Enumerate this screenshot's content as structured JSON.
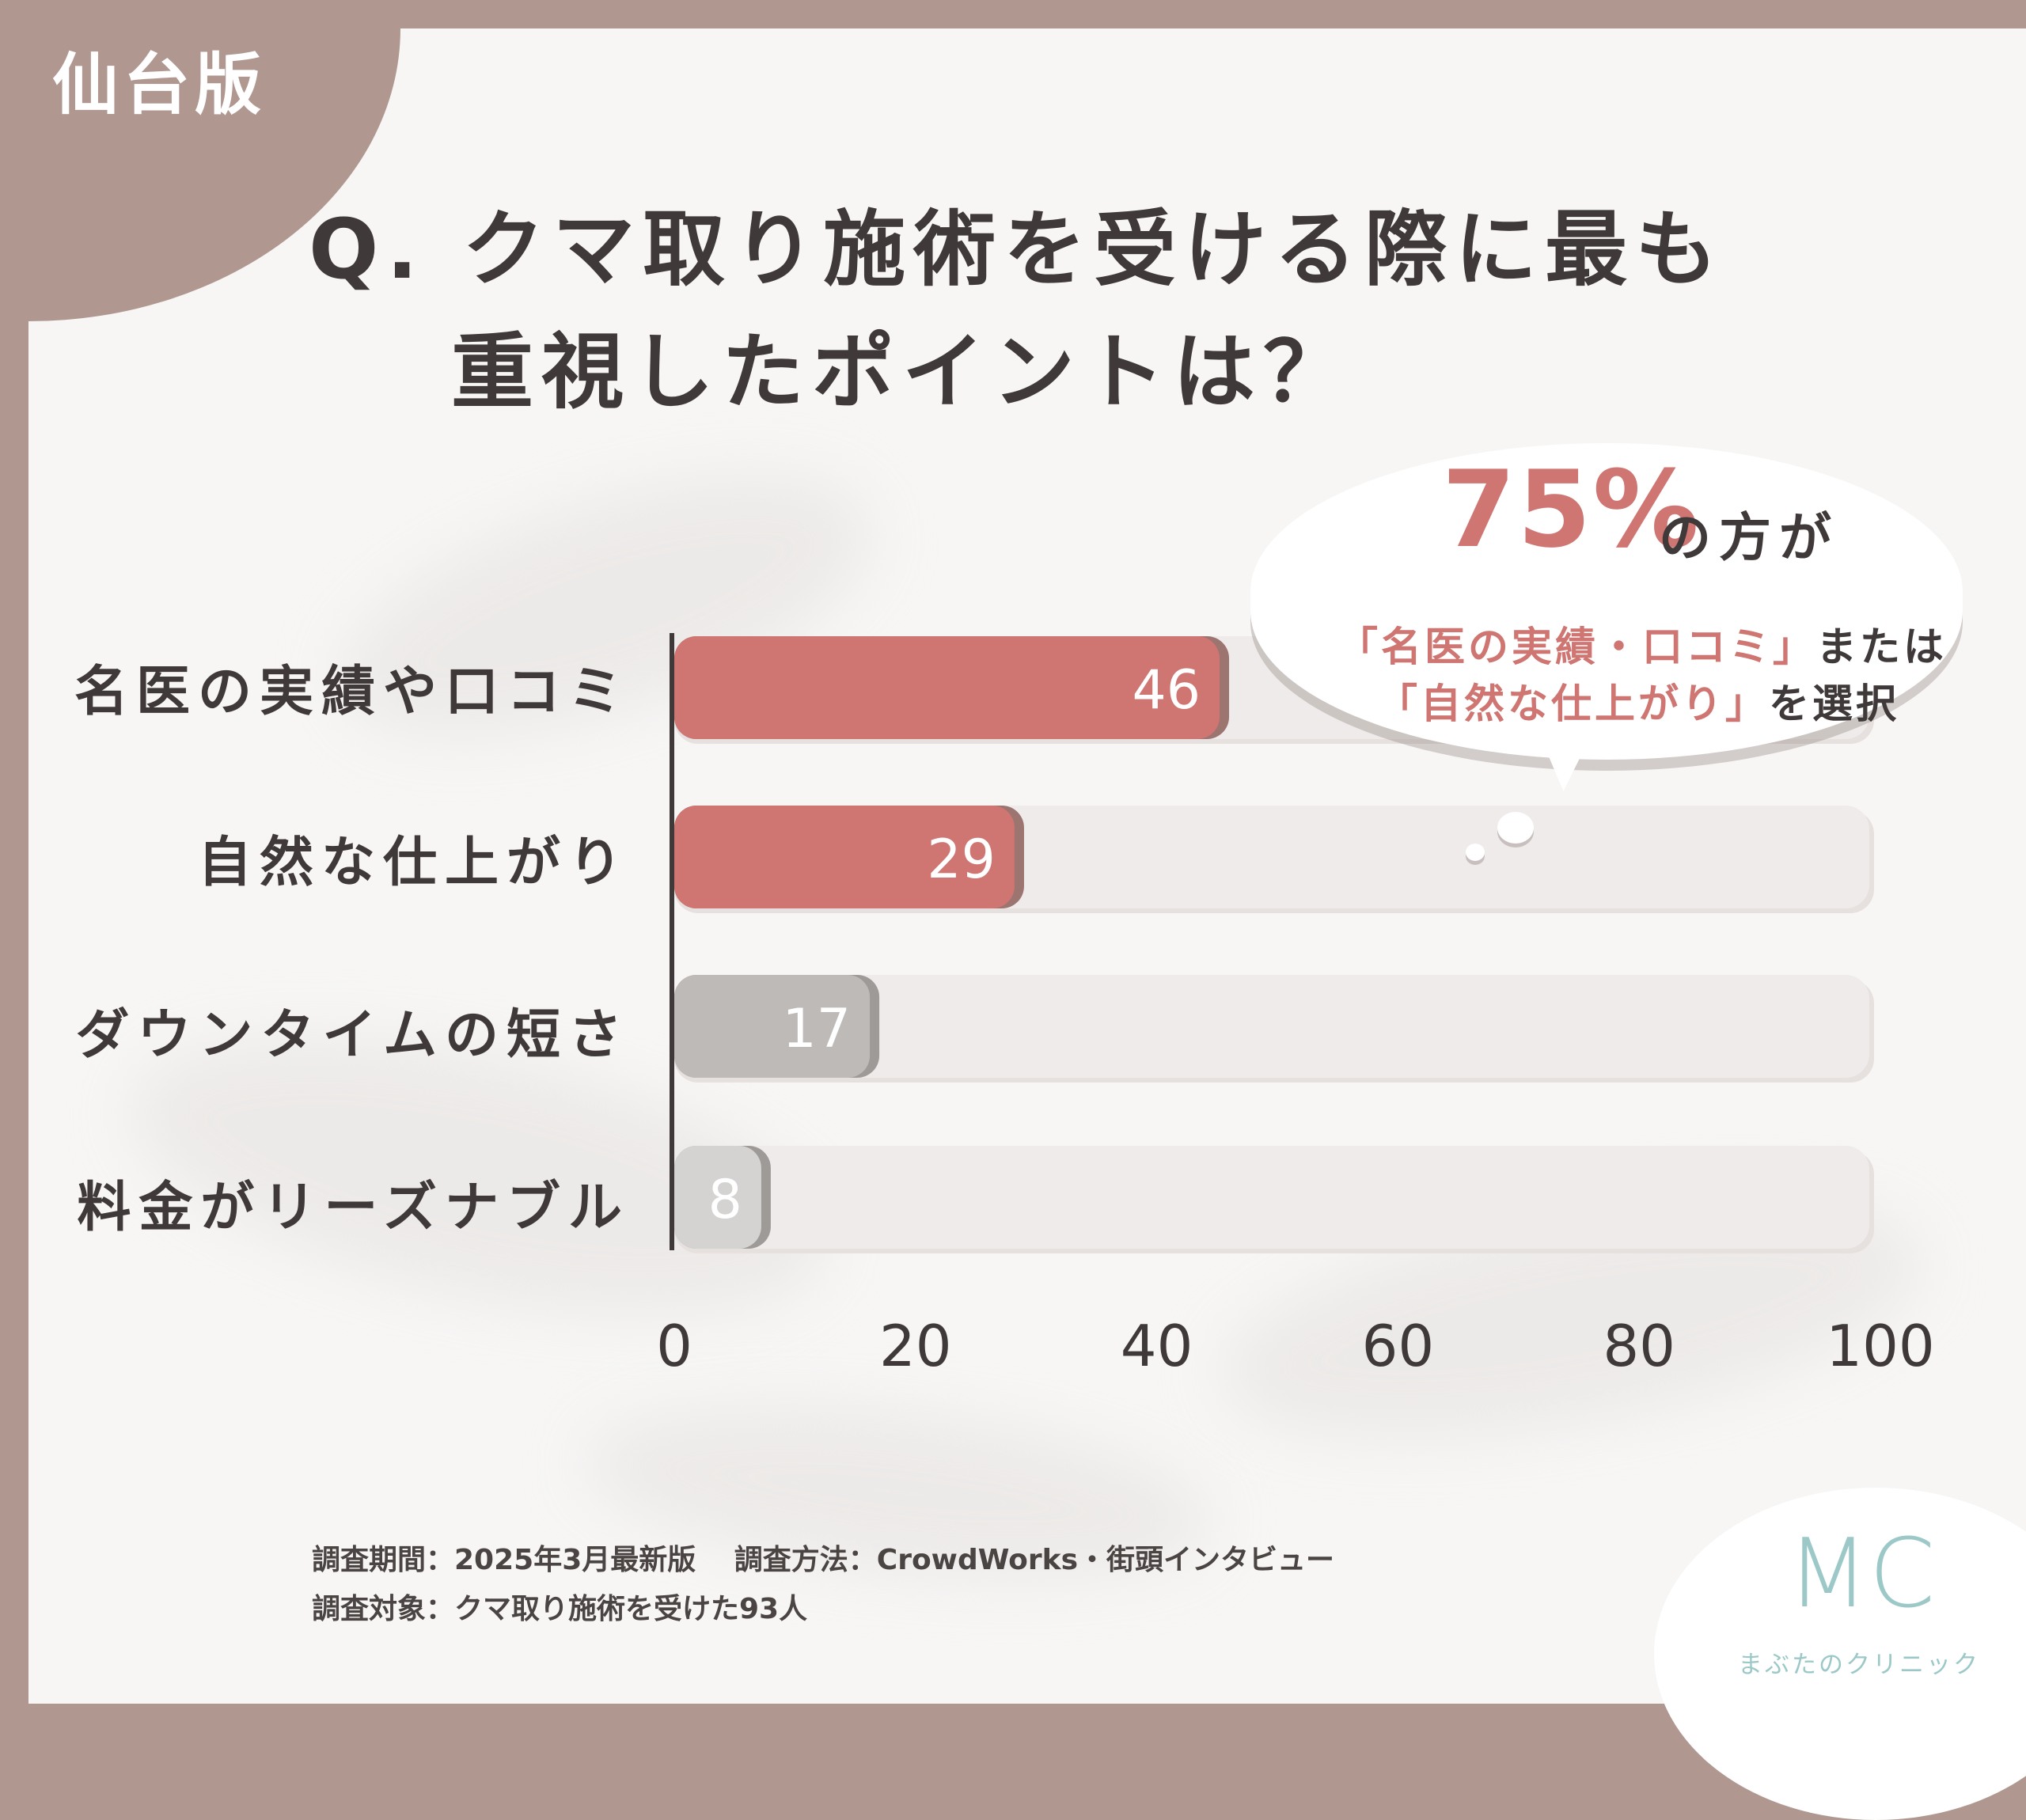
{
  "edition_label": "仙台版",
  "title": {
    "line1": "Q. クマ取り施術を受ける際に最も",
    "line2": "重視したポイントは？"
  },
  "callout": {
    "percent": "75%",
    "suffix": "の方が",
    "line2_quote": "「名医の実績・口コミ」",
    "line2_rest": "または",
    "line3_quote": "「自然な仕上がり」",
    "line3_rest": "を選択"
  },
  "chart_data": {
    "type": "bar",
    "orientation": "horizontal",
    "categories": [
      "名医の実績や口コミ",
      "自然な仕上がり",
      "ダウンタイムの短さ",
      "料金がリーズナブル"
    ],
    "values": [
      46,
      29,
      17,
      8
    ],
    "x_ticks": [
      "0",
      "20",
      "40",
      "60",
      "80",
      "100"
    ],
    "xlim": [
      0,
      100
    ],
    "value_labels": [
      "46",
      "29",
      "17",
      "8"
    ],
    "colors": {
      "highlight": "#cf7572",
      "highlight_shadow": "#9c7470",
      "neutral": [
        "#bdbab8",
        "#d5d3d1"
      ],
      "neutral_shadow": "#9e9a98",
      "track": "#efebea",
      "axis": "#3f3a39"
    },
    "grid": false,
    "legend": "none"
  },
  "footnotes": {
    "line1": "調査期間：2025年3月最新版　 調査方法：CrowdWorks・街頭インタビュー",
    "line2": "調査対象：クマ取り施術を受けた93人"
  },
  "logo": {
    "mark": "MC",
    "name": "まぶたのクリニック",
    "color": "#9cc9c8"
  }
}
